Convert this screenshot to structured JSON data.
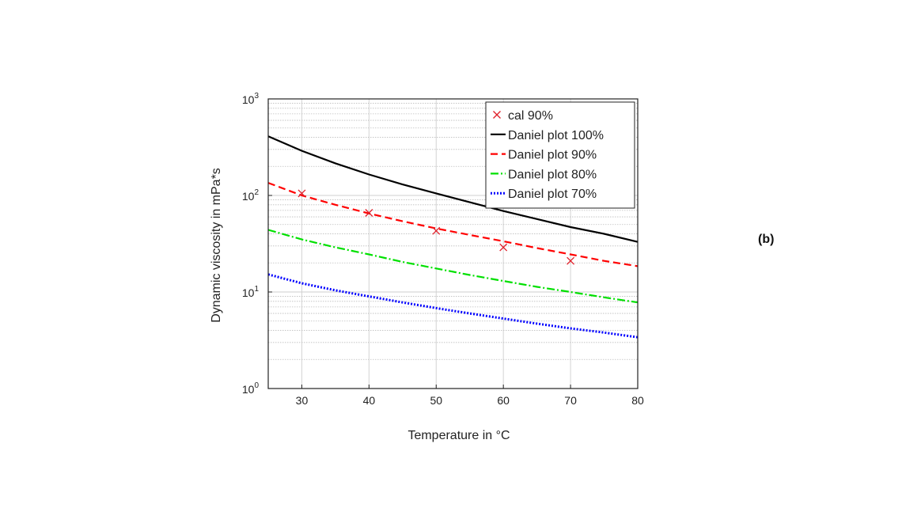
{
  "panel_label": "(b)",
  "chart_data": {
    "type": "line",
    "xlabel": "Temperature in °C",
    "ylabel": "Dynamic viscosity in mPa*s",
    "xlim": [
      25,
      80
    ],
    "ylim": [
      1,
      1000
    ],
    "yscale": "log",
    "grid": true,
    "legend_position": "top-right",
    "x_ticks": [
      30,
      40,
      50,
      60,
      70,
      80
    ],
    "y_ticks": [
      {
        "value": 1,
        "base": "10",
        "exp": "0"
      },
      {
        "value": 10,
        "base": "10",
        "exp": "1"
      },
      {
        "value": 100,
        "base": "10",
        "exp": "2"
      },
      {
        "value": 1000,
        "base": "10",
        "exp": "3"
      }
    ],
    "series": [
      {
        "name": "cal 90%",
        "kind": "marker",
        "color": "#e0202a",
        "x": [
          30,
          40,
          50,
          60,
          70
        ],
        "y": [
          105,
          66,
          43,
          29,
          21
        ]
      },
      {
        "name": "Daniel plot 100%",
        "kind": "line",
        "dash": "solid",
        "color": "#000000",
        "x": [
          25,
          30,
          35,
          40,
          45,
          50,
          55,
          60,
          65,
          70,
          75,
          80
        ],
        "y": [
          410,
          290,
          215,
          165,
          130,
          105,
          85,
          69,
          57,
          47,
          40,
          33
        ]
      },
      {
        "name": "Daniel plot 90%",
        "kind": "line",
        "dash": "dashed",
        "color": "#ff0000",
        "x": [
          25,
          30,
          35,
          40,
          45,
          50,
          55,
          60,
          65,
          70,
          75,
          80
        ],
        "y": [
          135,
          100,
          80,
          65,
          54,
          45.5,
          39,
          33.5,
          28.5,
          24.5,
          21,
          18.5
        ]
      },
      {
        "name": "Daniel plot 80%",
        "kind": "line",
        "dash": "dashdot",
        "color": "#00e000",
        "x": [
          25,
          30,
          35,
          40,
          45,
          50,
          55,
          60,
          65,
          70,
          75,
          80
        ],
        "y": [
          44,
          35,
          29,
          24.5,
          20.5,
          17.5,
          15,
          13,
          11.3,
          10,
          8.8,
          7.8
        ]
      },
      {
        "name": "Daniel plot 70%",
        "kind": "line",
        "dash": "dotted",
        "color": "#0000ff",
        "x": [
          25,
          30,
          35,
          40,
          45,
          50,
          55,
          60,
          65,
          70,
          75,
          80
        ],
        "y": [
          15.2,
          12.3,
          10.4,
          9.0,
          7.8,
          6.8,
          6.0,
          5.3,
          4.7,
          4.2,
          3.8,
          3.4
        ]
      }
    ]
  }
}
